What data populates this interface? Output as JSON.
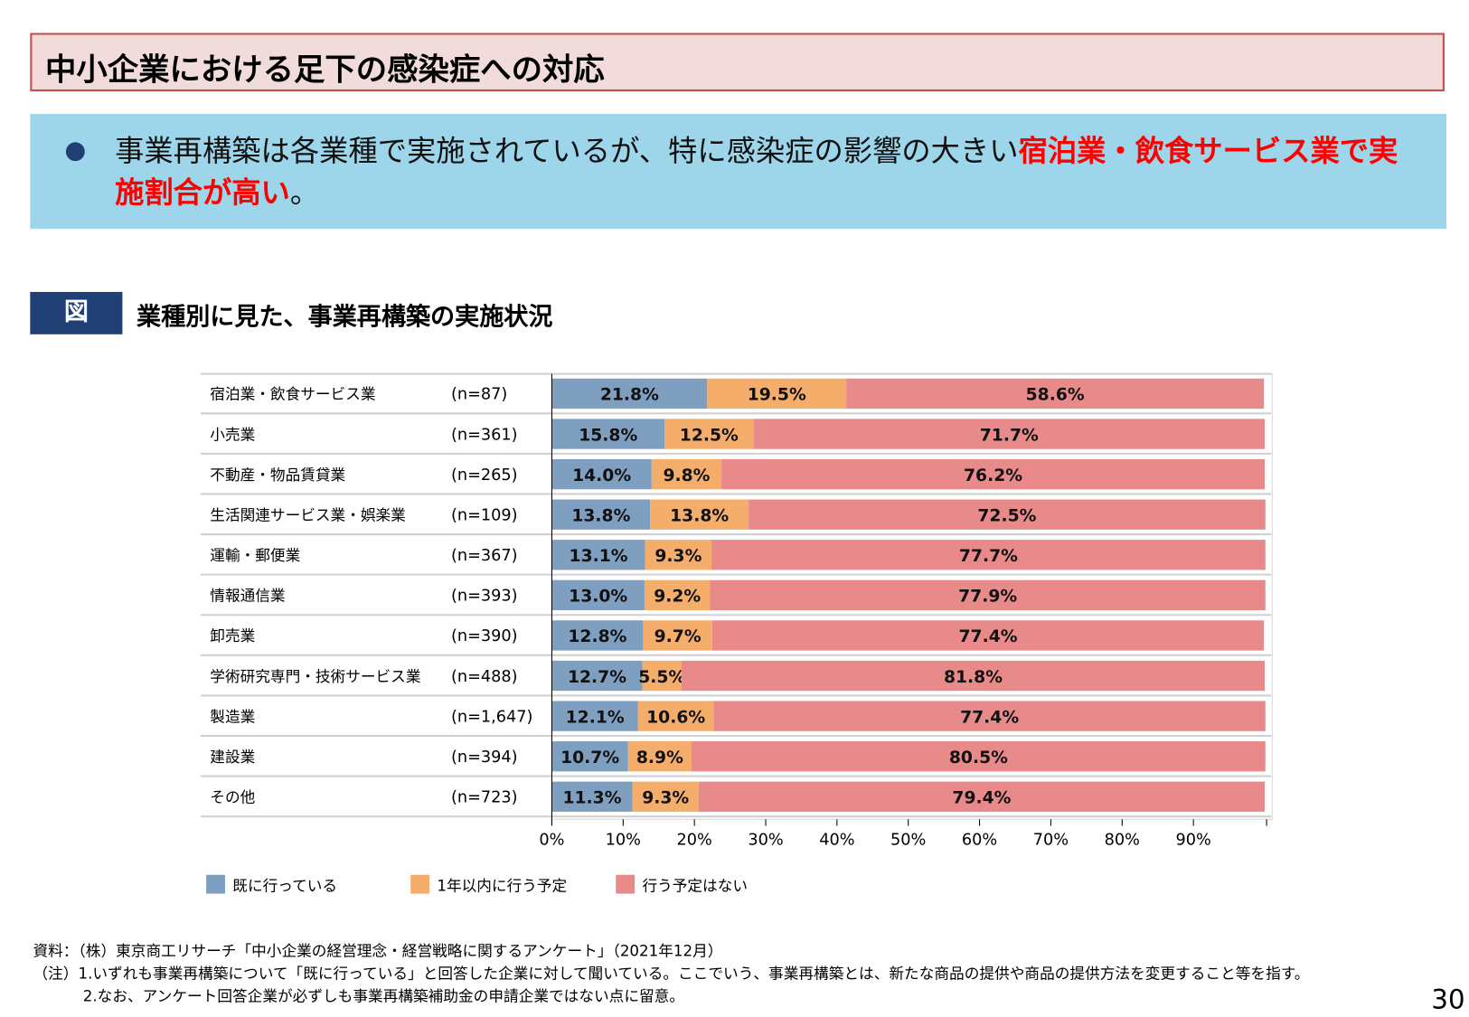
{
  "title": "中小企業における足下の感染症への対応",
  "summary": {
    "text_plain": "事業再構築は各業種で実施されているが、特に感染症の影響の大きい",
    "text_highlight": "宿泊業・飲食サービス業で実施割合が高い",
    "text_end": "。"
  },
  "figure": {
    "tag": "図",
    "title": "業種別に見た、事業再構築の実施状況"
  },
  "chart_data": {
    "type": "bar",
    "orientation": "horizontal",
    "stacked": true,
    "categories": [
      "宿泊業・飲食サービス業",
      "小売業",
      "不動産・物品賃貸業",
      "生活関連サービス業・娯楽業",
      "運輸・郵便業",
      "情報通信業",
      "卸売業",
      "学術研究専門・技術サービス業",
      "製造業",
      "建設業",
      "その他"
    ],
    "sample_sizes": [
      "(n=87)",
      "(n=361)",
      "(n=265)",
      "(n=109)",
      "(n=367)",
      "(n=393)",
      "(n=390)",
      "(n=488)",
      "(n=1,647)",
      "(n=394)",
      "(n=723)"
    ],
    "series": [
      {
        "name": "既に行っている",
        "color": "#7f9fc1",
        "values": [
          21.8,
          15.8,
          14.0,
          13.8,
          13.1,
          13.0,
          12.8,
          12.7,
          12.1,
          10.7,
          11.3
        ]
      },
      {
        "name": "1年以内に行う予定",
        "color": "#f5ad6b",
        "values": [
          19.5,
          12.5,
          9.8,
          13.8,
          9.3,
          9.2,
          9.7,
          5.5,
          10.6,
          8.9,
          9.3
        ]
      },
      {
        "name": "行う予定はない",
        "color": "#e88a8a",
        "values": [
          58.6,
          71.7,
          76.2,
          72.5,
          77.7,
          77.9,
          77.4,
          81.8,
          77.4,
          80.5,
          79.4
        ]
      }
    ],
    "xlim": [
      0,
      100
    ],
    "xticks": [
      "0%",
      "10%",
      "20%",
      "30%",
      "40%",
      "50%",
      "60%",
      "70%",
      "80%",
      "90%"
    ],
    "unit": "%",
    "legend_placement": "bottom-left",
    "grid": false
  },
  "source": {
    "line1": "資料：（株）東京商工リサーチ「中小企業の経営理念・経営戦略に関するアンケート」（2021年12月）",
    "line2": "（注）1.いずれも事業再構築について「既に行っている」と回答した企業に対して聞いている。ここでいう、事業再構築とは、新たな商品の提供や商品の提供方法を変更すること等を指す。",
    "line3": "　　　 2.なお、アンケート回答企業が必ずしも事業再構築補助金の申請企業ではない点に留意。"
  },
  "page_number": "30"
}
